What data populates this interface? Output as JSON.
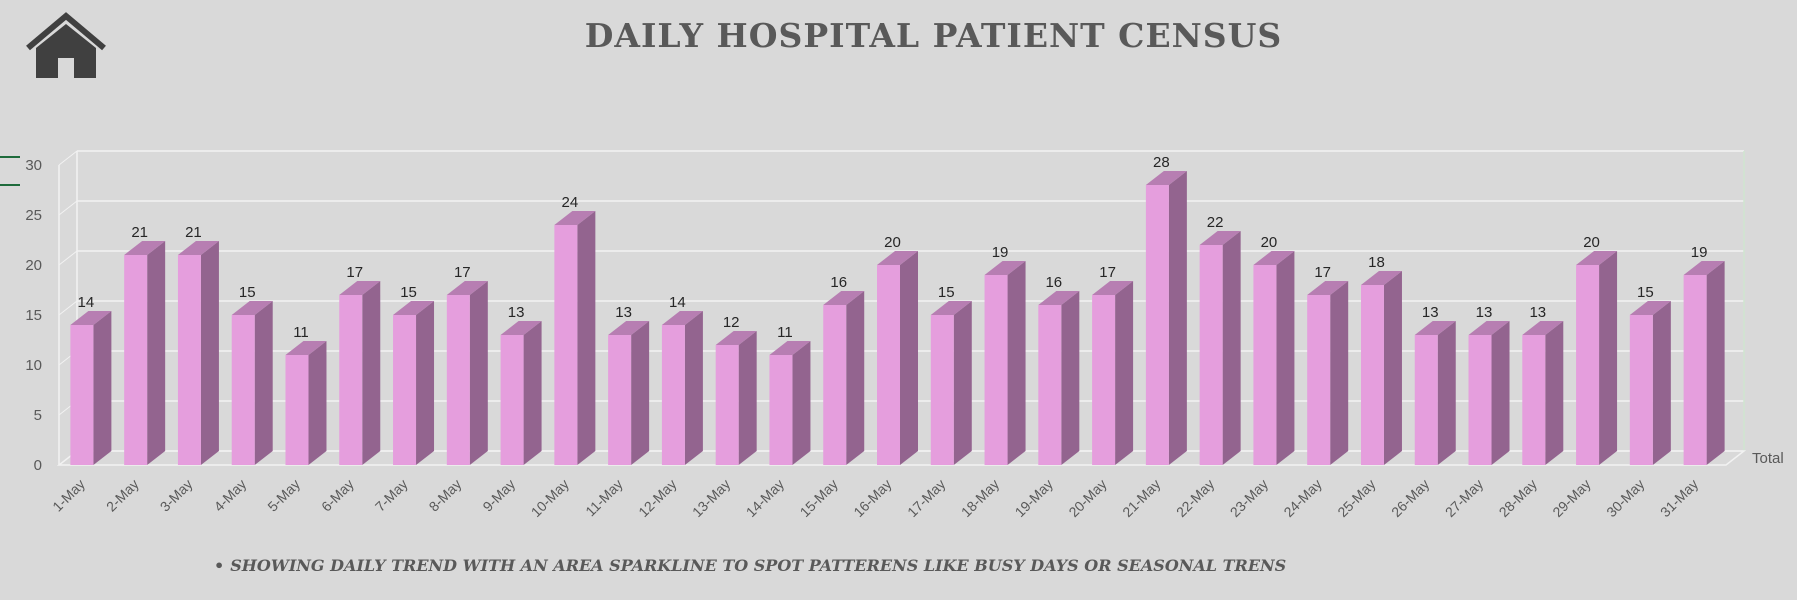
{
  "header": {
    "title": "DAILY HOSPITAL PATIENT CENSUS",
    "home_icon": "home-icon"
  },
  "footnote": {
    "bullet": "•",
    "text": "SHOWING DAILY TREND WITH AN AREA SPARKLINE TO SPOT PATTERENS LIKE BUSY DAYS OR SEASONAL TRENS"
  },
  "colors": {
    "background": "#d9d9d9",
    "bar_front": "#e59edd",
    "bar_side": "#93648f",
    "bar_top": "#b77eb2",
    "title": "#595959",
    "gridline": "#f2f2f2"
  },
  "chart_data": {
    "type": "bar",
    "style": "3d-column",
    "title": "",
    "xlabel": "",
    "ylabel": "",
    "ylim": [
      0,
      30
    ],
    "yticks": [
      0,
      5,
      10,
      15,
      20,
      25,
      30
    ],
    "grid": true,
    "legend": "right",
    "categories": [
      "1-May",
      "2-May",
      "3-May",
      "4-May",
      "5-May",
      "6-May",
      "7-May",
      "8-May",
      "9-May",
      "10-May",
      "11-May",
      "12-May",
      "13-May",
      "14-May",
      "15-May",
      "16-May",
      "17-May",
      "18-May",
      "19-May",
      "20-May",
      "21-May",
      "22-May",
      "23-May",
      "24-May",
      "25-May",
      "26-May",
      "27-May",
      "28-May",
      "29-May",
      "30-May",
      "31-May"
    ],
    "series": [
      {
        "name": "Total",
        "values": [
          14,
          21,
          21,
          15,
          11,
          17,
          15,
          17,
          13,
          24,
          13,
          14,
          12,
          11,
          16,
          20,
          15,
          19,
          16,
          17,
          28,
          22,
          20,
          17,
          18,
          13,
          13,
          13,
          20,
          15,
          19
        ]
      }
    ]
  }
}
